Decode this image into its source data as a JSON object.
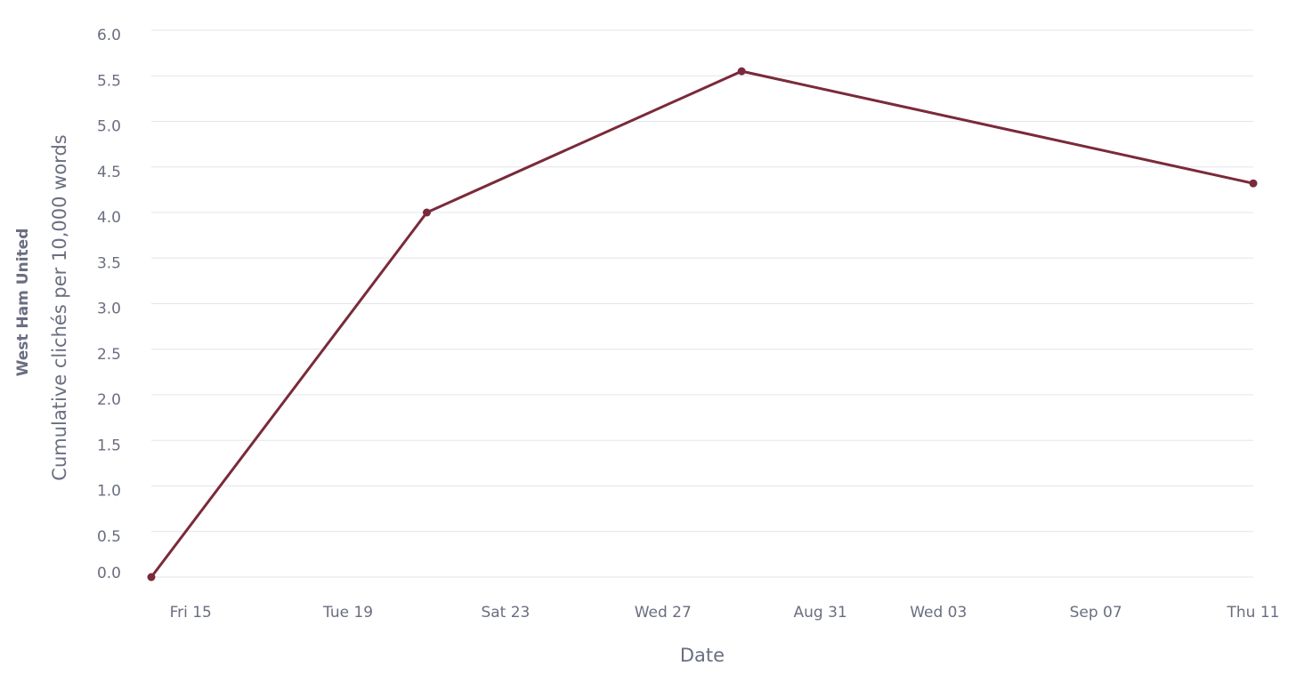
{
  "chart_data": {
    "type": "line",
    "y_title": "West Ham United",
    "y_subtitle": "Cumulative clichés per 10,000 words",
    "x_title": "Date",
    "x": [
      "Aug 14",
      "Aug 21",
      "Aug 29",
      "Sep 11"
    ],
    "series": [
      {
        "color": "#7a2a3a",
        "values": [
          0,
          4.0,
          5.55,
          4.32
        ]
      }
    ],
    "xlim": [
      "Aug 14",
      "Sep 11"
    ],
    "xticks": [
      {
        "value": "Aug 15",
        "label": "Fri 15"
      },
      {
        "value": "Aug 19",
        "label": "Tue 19"
      },
      {
        "value": "Aug 23",
        "label": "Sat 23"
      },
      {
        "value": "Aug 27",
        "label": "Wed 27"
      },
      {
        "value": "Aug 31",
        "label": "Aug 31"
      },
      {
        "value": "Sep 03",
        "label": "Wed 03"
      },
      {
        "value": "Sep 07",
        "label": "Sep 07"
      },
      {
        "value": "Sep 11",
        "label": "Thu 11"
      }
    ],
    "ylim": [
      0,
      6
    ],
    "yticks": [
      {
        "value": 0,
        "label": "0.0"
      },
      0.5,
      {
        "value": 1,
        "label": "1.0"
      },
      1.5,
      {
        "value": 2,
        "label": "2.0"
      },
      2.5,
      {
        "value": 3,
        "label": "3.0"
      },
      3.5,
      {
        "value": 4,
        "label": "4.0"
      },
      4.5,
      {
        "value": 5,
        "label": "5.0"
      },
      5.5,
      {
        "value": 6,
        "label": "6.0"
      }
    ],
    "grid": true
  }
}
